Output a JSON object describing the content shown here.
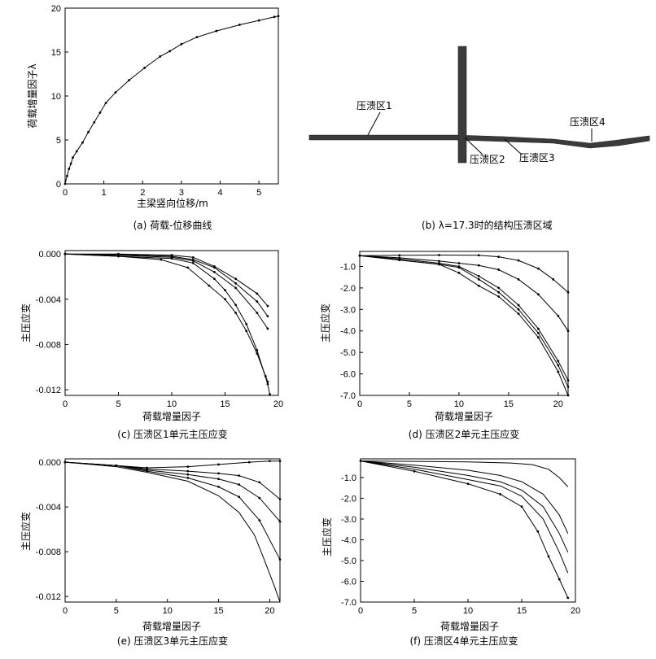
{
  "chart_data": [
    {
      "id": "a",
      "type": "line",
      "caption": "(a) 荷载-位移曲线",
      "xlabel": "主梁竖向位移/m",
      "ylabel": "荷载增量因子λ",
      "xlim": [
        0,
        5.5
      ],
      "ylim": [
        0,
        20
      ],
      "xticks": [
        0,
        1,
        2,
        3,
        4,
        5
      ],
      "yticks": [
        0,
        5,
        10,
        15,
        20
      ],
      "grid": false,
      "series": [
        {
          "markers": true,
          "points": [
            [
              0,
              0
            ],
            [
              0.05,
              0.9
            ],
            [
              0.1,
              1.7
            ],
            [
              0.15,
              2.3
            ],
            [
              0.2,
              3.0
            ],
            [
              0.3,
              3.7
            ],
            [
              0.45,
              4.7
            ],
            [
              0.6,
              5.9
            ],
            [
              0.75,
              7.0
            ],
            [
              0.9,
              8.1
            ],
            [
              1.05,
              9.2
            ],
            [
              1.3,
              10.4
            ],
            [
              1.65,
              11.8
            ],
            [
              2.05,
              13.2
            ],
            [
              2.45,
              14.5
            ],
            [
              2.7,
              15.1
            ],
            [
              3.0,
              15.9
            ],
            [
              3.4,
              16.7
            ],
            [
              3.9,
              17.4
            ],
            [
              4.5,
              18.1
            ],
            [
              5.0,
              18.6
            ],
            [
              5.4,
              19.0
            ],
            [
              5.5,
              19.1
            ]
          ]
        }
      ]
    },
    {
      "id": "c",
      "type": "line",
      "caption": "(c) 压溃区1单元主压应变",
      "xlabel": "荷载增量因子",
      "ylabel": "主压应变",
      "xlim": [
        0,
        20
      ],
      "ylim": [
        -0.0125,
        0.0003
      ],
      "xticks": [
        0,
        5,
        10,
        15,
        20
      ],
      "yticks": [
        0.0,
        -0.004,
        -0.008,
        -0.012
      ],
      "ytick_labels": [
        "0.000",
        "-0.004",
        "-0.008",
        "-0.012"
      ],
      "grid": false,
      "series": [
        {
          "markers": true,
          "points": [
            [
              0,
              0
            ],
            [
              5,
              0
            ],
            [
              10,
              -0.0001
            ],
            [
              12,
              -0.0003
            ],
            [
              14,
              -0.0011
            ],
            [
              16,
              -0.0022
            ],
            [
              18,
              -0.0035
            ],
            [
              19,
              -0.0046
            ]
          ]
        },
        {
          "markers": true,
          "points": [
            [
              0,
              0
            ],
            [
              5,
              -5e-05
            ],
            [
              10,
              -0.0002
            ],
            [
              12,
              -0.0005
            ],
            [
              14,
              -0.0012
            ],
            [
              16,
              -0.0026
            ],
            [
              18,
              -0.0042
            ],
            [
              19,
              -0.0055
            ]
          ]
        },
        {
          "markers": true,
          "points": [
            [
              0,
              0
            ],
            [
              5,
              -0.0001
            ],
            [
              10,
              -0.0003
            ],
            [
              12,
              -0.0006
            ],
            [
              14,
              -0.0016
            ],
            [
              16,
              -0.003
            ],
            [
              18,
              -0.0052
            ],
            [
              19,
              -0.0066
            ]
          ]
        },
        {
          "markers": true,
          "points": [
            [
              0,
              0
            ],
            [
              5,
              -0.0002
            ],
            [
              10,
              -0.0004
            ],
            [
              12,
              -0.0008
            ],
            [
              14,
              -0.0022
            ],
            [
              15,
              -0.0032
            ],
            [
              16,
              -0.0045
            ],
            [
              17,
              -0.0062
            ],
            [
              18,
              -0.0085
            ],
            [
              19,
              -0.0115
            ],
            [
              19.2,
              -0.0124
            ]
          ]
        },
        {
          "markers": true,
          "points": [
            [
              0,
              0
            ],
            [
              5,
              -0.0002
            ],
            [
              9,
              -0.0005
            ],
            [
              11.5,
              -0.0012
            ],
            [
              13.5,
              -0.0028
            ],
            [
              15,
              -0.004
            ],
            [
              16,
              -0.0052
            ],
            [
              17,
              -0.0068
            ],
            [
              18,
              -0.0088
            ],
            [
              18.8,
              -0.0108
            ],
            [
              19,
              -0.0113
            ]
          ]
        }
      ]
    },
    {
      "id": "d",
      "type": "line",
      "caption": "(d) 压溃区2单元主压应变",
      "xlabel": "荷载增量因子",
      "ylabel": "主压应变",
      "xlim": [
        0,
        21
      ],
      "ylim": [
        -7.0,
        -0.3
      ],
      "xticks": [
        0,
        5,
        10,
        15,
        20
      ],
      "yticks": [
        -1.0,
        -2.0,
        -3.0,
        -4.0,
        -5.0,
        -6.0,
        -7.0
      ],
      "ytick_labels": [
        "-1.0",
        "-2.0",
        "-3.0",
        "-4.0",
        "-5.0",
        "-6.0",
        "-7.0"
      ],
      "grid": false,
      "series": [
        {
          "markers": true,
          "points": [
            [
              0,
              -0.5
            ],
            [
              4,
              -0.48
            ],
            [
              8,
              -0.47
            ],
            [
              12,
              -0.48
            ],
            [
              14,
              -0.55
            ],
            [
              16,
              -0.72
            ],
            [
              18,
              -1.1
            ],
            [
              19.5,
              -1.6
            ],
            [
              21,
              -2.2
            ]
          ]
        },
        {
          "markers": true,
          "points": [
            [
              0,
              -0.5
            ],
            [
              4,
              -0.6
            ],
            [
              8,
              -0.75
            ],
            [
              10,
              -0.85
            ],
            [
              12,
              -0.95
            ],
            [
              14,
              -1.15
            ],
            [
              16,
              -1.6
            ],
            [
              18,
              -2.3
            ],
            [
              20,
              -3.3
            ],
            [
              21,
              -4.0
            ]
          ]
        },
        {
          "markers": true,
          "points": [
            [
              0,
              -0.5
            ],
            [
              4,
              -0.65
            ],
            [
              8,
              -0.85
            ],
            [
              10,
              -1.0
            ],
            [
              12,
              -1.45
            ],
            [
              14,
              -2.0
            ],
            [
              16,
              -2.8
            ],
            [
              18,
              -3.9
            ],
            [
              20,
              -5.4
            ],
            [
              21,
              -6.3
            ]
          ]
        },
        {
          "markers": true,
          "points": [
            [
              0,
              -0.5
            ],
            [
              4,
              -0.7
            ],
            [
              8,
              -0.9
            ],
            [
              10,
              -1.05
            ],
            [
              12,
              -1.6
            ],
            [
              14,
              -2.2
            ],
            [
              16,
              -3.0
            ],
            [
              18,
              -4.1
            ],
            [
              20,
              -5.6
            ],
            [
              21,
              -6.6
            ]
          ]
        },
        {
          "markers": true,
          "points": [
            [
              0,
              -0.5
            ],
            [
              4,
              -0.7
            ],
            [
              8,
              -0.9
            ],
            [
              10,
              -1.3
            ],
            [
              12,
              -1.9
            ],
            [
              14,
              -2.4
            ],
            [
              16,
              -3.2
            ],
            [
              18,
              -4.3
            ],
            [
              20,
              -5.9
            ],
            [
              21,
              -7.0
            ]
          ]
        }
      ]
    },
    {
      "id": "e",
      "type": "line",
      "caption": "(e) 压溃区3单元主压应变",
      "xlabel": "荷载增量因子",
      "ylabel": "主压应变",
      "xlim": [
        0,
        21
      ],
      "ylim": [
        -0.0125,
        0.0003
      ],
      "xticks": [
        0,
        5,
        10,
        15,
        20
      ],
      "yticks": [
        0.0,
        -0.004,
        -0.008,
        -0.012
      ],
      "ytick_labels": [
        "0.000",
        "-0.004",
        "-0.008",
        "-0.012"
      ],
      "grid": false,
      "series": [
        {
          "markers": true,
          "points": [
            [
              0,
              0
            ],
            [
              5,
              -0.0003
            ],
            [
              8,
              -0.0005
            ],
            [
              12,
              -0.0004
            ],
            [
              15,
              -0.0002
            ],
            [
              18,
              0.0
            ],
            [
              20,
              0.0001
            ],
            [
              21,
              0.0001
            ]
          ]
        },
        {
          "markers": true,
          "points": [
            [
              0,
              0
            ],
            [
              5,
              -0.0003
            ],
            [
              8,
              -0.0006
            ],
            [
              12,
              -0.0008
            ],
            [
              15,
              -0.001
            ],
            [
              17,
              -0.0012
            ],
            [
              19,
              -0.0018
            ],
            [
              21,
              -0.0033
            ]
          ]
        },
        {
          "markers": true,
          "points": [
            [
              0,
              0
            ],
            [
              5,
              -0.0003
            ],
            [
              8,
              -0.0007
            ],
            [
              12,
              -0.0011
            ],
            [
              15,
              -0.0015
            ],
            [
              17,
              -0.002
            ],
            [
              19,
              -0.0032
            ],
            [
              21,
              -0.0053
            ]
          ]
        },
        {
          "markers": true,
          "points": [
            [
              0,
              0
            ],
            [
              5,
              -0.0003
            ],
            [
              8,
              -0.0008
            ],
            [
              12,
              -0.0014
            ],
            [
              15,
              -0.0022
            ],
            [
              17,
              -0.0031
            ],
            [
              19,
              -0.0052
            ],
            [
              21,
              -0.0087
            ]
          ]
        },
        {
          "markers": false,
          "points": [
            [
              0,
              0
            ],
            [
              5,
              -0.0004
            ],
            [
              8,
              -0.0009
            ],
            [
              12,
              -0.0017
            ],
            [
              15,
              -0.003
            ],
            [
              17,
              -0.0045
            ],
            [
              18.5,
              -0.0065
            ],
            [
              19.5,
              -0.0088
            ],
            [
              20.5,
              -0.0112
            ],
            [
              21,
              -0.0125
            ]
          ]
        }
      ]
    },
    {
      "id": "f",
      "type": "line",
      "caption": "(f) 压溃区4单元主压应变",
      "xlabel": "荷载增量因子",
      "ylabel": "主压应变",
      "xlim": [
        0,
        20
      ],
      "ylim": [
        -7.0,
        -0.1
      ],
      "xticks": [
        0,
        5,
        10,
        15,
        20
      ],
      "yticks": [
        -1.0,
        -2.0,
        -3.0,
        -4.0,
        -5.0,
        -6.0,
        -7.0
      ],
      "ytick_labels": [
        "-1.0",
        "-2.0",
        "-3.0",
        "-4.0",
        "-5.0",
        "-6.0",
        "-7.0"
      ],
      "grid": false,
      "series": [
        {
          "markers": false,
          "points": [
            [
              0,
              -0.2
            ],
            [
              5,
              -0.22
            ],
            [
              10,
              -0.25
            ],
            [
              14,
              -0.3
            ],
            [
              16,
              -0.38
            ],
            [
              17.5,
              -0.6
            ],
            [
              18.5,
              -1.0
            ],
            [
              19.3,
              -1.45
            ]
          ]
        },
        {
          "markers": false,
          "points": [
            [
              0,
              -0.2
            ],
            [
              5,
              -0.4
            ],
            [
              10,
              -0.65
            ],
            [
              13,
              -0.9
            ],
            [
              15,
              -1.2
            ],
            [
              17,
              -1.8
            ],
            [
              18.5,
              -2.8
            ],
            [
              19.3,
              -3.7
            ]
          ]
        },
        {
          "markers": false,
          "points": [
            [
              0,
              -0.2
            ],
            [
              5,
              -0.5
            ],
            [
              10,
              -0.9
            ],
            [
              13,
              -1.2
            ],
            [
              15,
              -1.6
            ],
            [
              17,
              -2.4
            ],
            [
              18.5,
              -3.7
            ],
            [
              19.3,
              -4.6
            ]
          ]
        },
        {
          "markers": false,
          "points": [
            [
              0,
              -0.2
            ],
            [
              5,
              -0.6
            ],
            [
              10,
              -1.1
            ],
            [
              13,
              -1.4
            ],
            [
              15,
              -1.9
            ],
            [
              17,
              -3.0
            ],
            [
              18.5,
              -4.6
            ],
            [
              19.3,
              -5.6
            ]
          ]
        },
        {
          "markers": true,
          "points": [
            [
              0,
              -0.2
            ],
            [
              5,
              -0.7
            ],
            [
              10,
              -1.3
            ],
            [
              13,
              -1.8
            ],
            [
              15,
              -2.4
            ],
            [
              16.5,
              -3.6
            ],
            [
              17.5,
              -4.8
            ],
            [
              18.5,
              -5.9
            ],
            [
              19.3,
              -6.8
            ]
          ]
        }
      ]
    }
  ],
  "structure_b": {
    "caption": "(b) λ=17.3时的结构压溃区域",
    "labels": [
      "压溃区1",
      "压溃区2",
      "压溃区3",
      "压溃区4"
    ]
  }
}
